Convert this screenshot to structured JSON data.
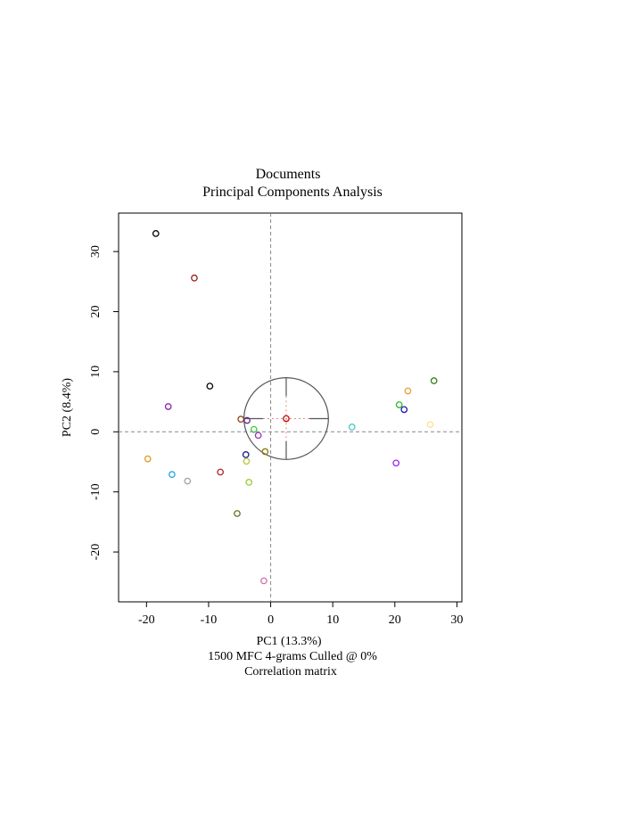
{
  "chart_data": {
    "type": "scatter",
    "title": "Documents",
    "subtitle": "Principal Components Analysis",
    "xlabel": "PC1 (13.3%)",
    "ylabel": "PC2 (8.4%)",
    "caption_lines": [
      "1500 MFC 4-grams Culled @ 0%",
      "Correlation matrix"
    ],
    "xlim": [
      -24.5,
      30.8
    ],
    "ylim": [
      -28.3,
      36.4
    ],
    "x_ticks": [
      -20,
      -10,
      0,
      10,
      20,
      30
    ],
    "y_ticks": [
      -20,
      -10,
      0,
      10,
      20,
      30
    ],
    "x_tick_labels": [
      "-20",
      "-10",
      "0",
      "10",
      "20",
      "30"
    ],
    "y_tick_labels": [
      "-20",
      "-10",
      "0",
      "10",
      "20",
      "30"
    ],
    "reference_lines": {
      "x": 0,
      "y": 0,
      "style": "dashed"
    },
    "grid": false,
    "legend": "none",
    "centroid_marker": {
      "center": [
        2.5,
        2.2
      ],
      "radius": 6.8,
      "color": "#cc0000"
    },
    "points": [
      {
        "x": -18.5,
        "y": 33.0,
        "color": "#000000"
      },
      {
        "x": -12.3,
        "y": 25.6,
        "color": "#9b1c1c"
      },
      {
        "x": -9.8,
        "y": 7.6,
        "color": "#000000"
      },
      {
        "x": -16.5,
        "y": 4.2,
        "color": "#8b25a8"
      },
      {
        "x": -4.8,
        "y": 2.1,
        "color": "#8b4513"
      },
      {
        "x": -3.8,
        "y": 1.9,
        "color": "#6a2a8a"
      },
      {
        "x": -2.7,
        "y": 0.4,
        "color": "#33cc33"
      },
      {
        "x": -2.0,
        "y": -0.6,
        "color": "#9b30c0"
      },
      {
        "x": -4.0,
        "y": -3.8,
        "color": "#1a1a8c"
      },
      {
        "x": -0.9,
        "y": -3.3,
        "color": "#8b7a0a"
      },
      {
        "x": -3.9,
        "y": -4.9,
        "color": "#b5c43a"
      },
      {
        "x": -3.5,
        "y": -8.4,
        "color": "#9acd32"
      },
      {
        "x": -19.8,
        "y": -4.5,
        "color": "#e39b2b"
      },
      {
        "x": -15.9,
        "y": -7.1,
        "color": "#1fa7e0"
      },
      {
        "x": -13.4,
        "y": -8.2,
        "color": "#a0a0a0"
      },
      {
        "x": -8.1,
        "y": -6.7,
        "color": "#a52a2a"
      },
      {
        "x": -5.4,
        "y": -13.6,
        "color": "#6b6b1a"
      },
      {
        "x": -1.1,
        "y": -24.8,
        "color": "#d070b0"
      },
      {
        "x": 2.5,
        "y": 2.2,
        "color": "#cc0000"
      },
      {
        "x": 13.1,
        "y": 0.8,
        "color": "#4fc7c7"
      },
      {
        "x": 20.2,
        "y": -5.2,
        "color": "#a020f0"
      },
      {
        "x": 20.7,
        "y": 4.5,
        "color": "#2eb82e"
      },
      {
        "x": 21.5,
        "y": 3.7,
        "color": "#1a1ab0"
      },
      {
        "x": 22.1,
        "y": 6.8,
        "color": "#e6a030"
      },
      {
        "x": 25.7,
        "y": 1.2,
        "color": "#ffe08a"
      },
      {
        "x": 26.3,
        "y": 8.5,
        "color": "#3a7d1a"
      }
    ]
  }
}
